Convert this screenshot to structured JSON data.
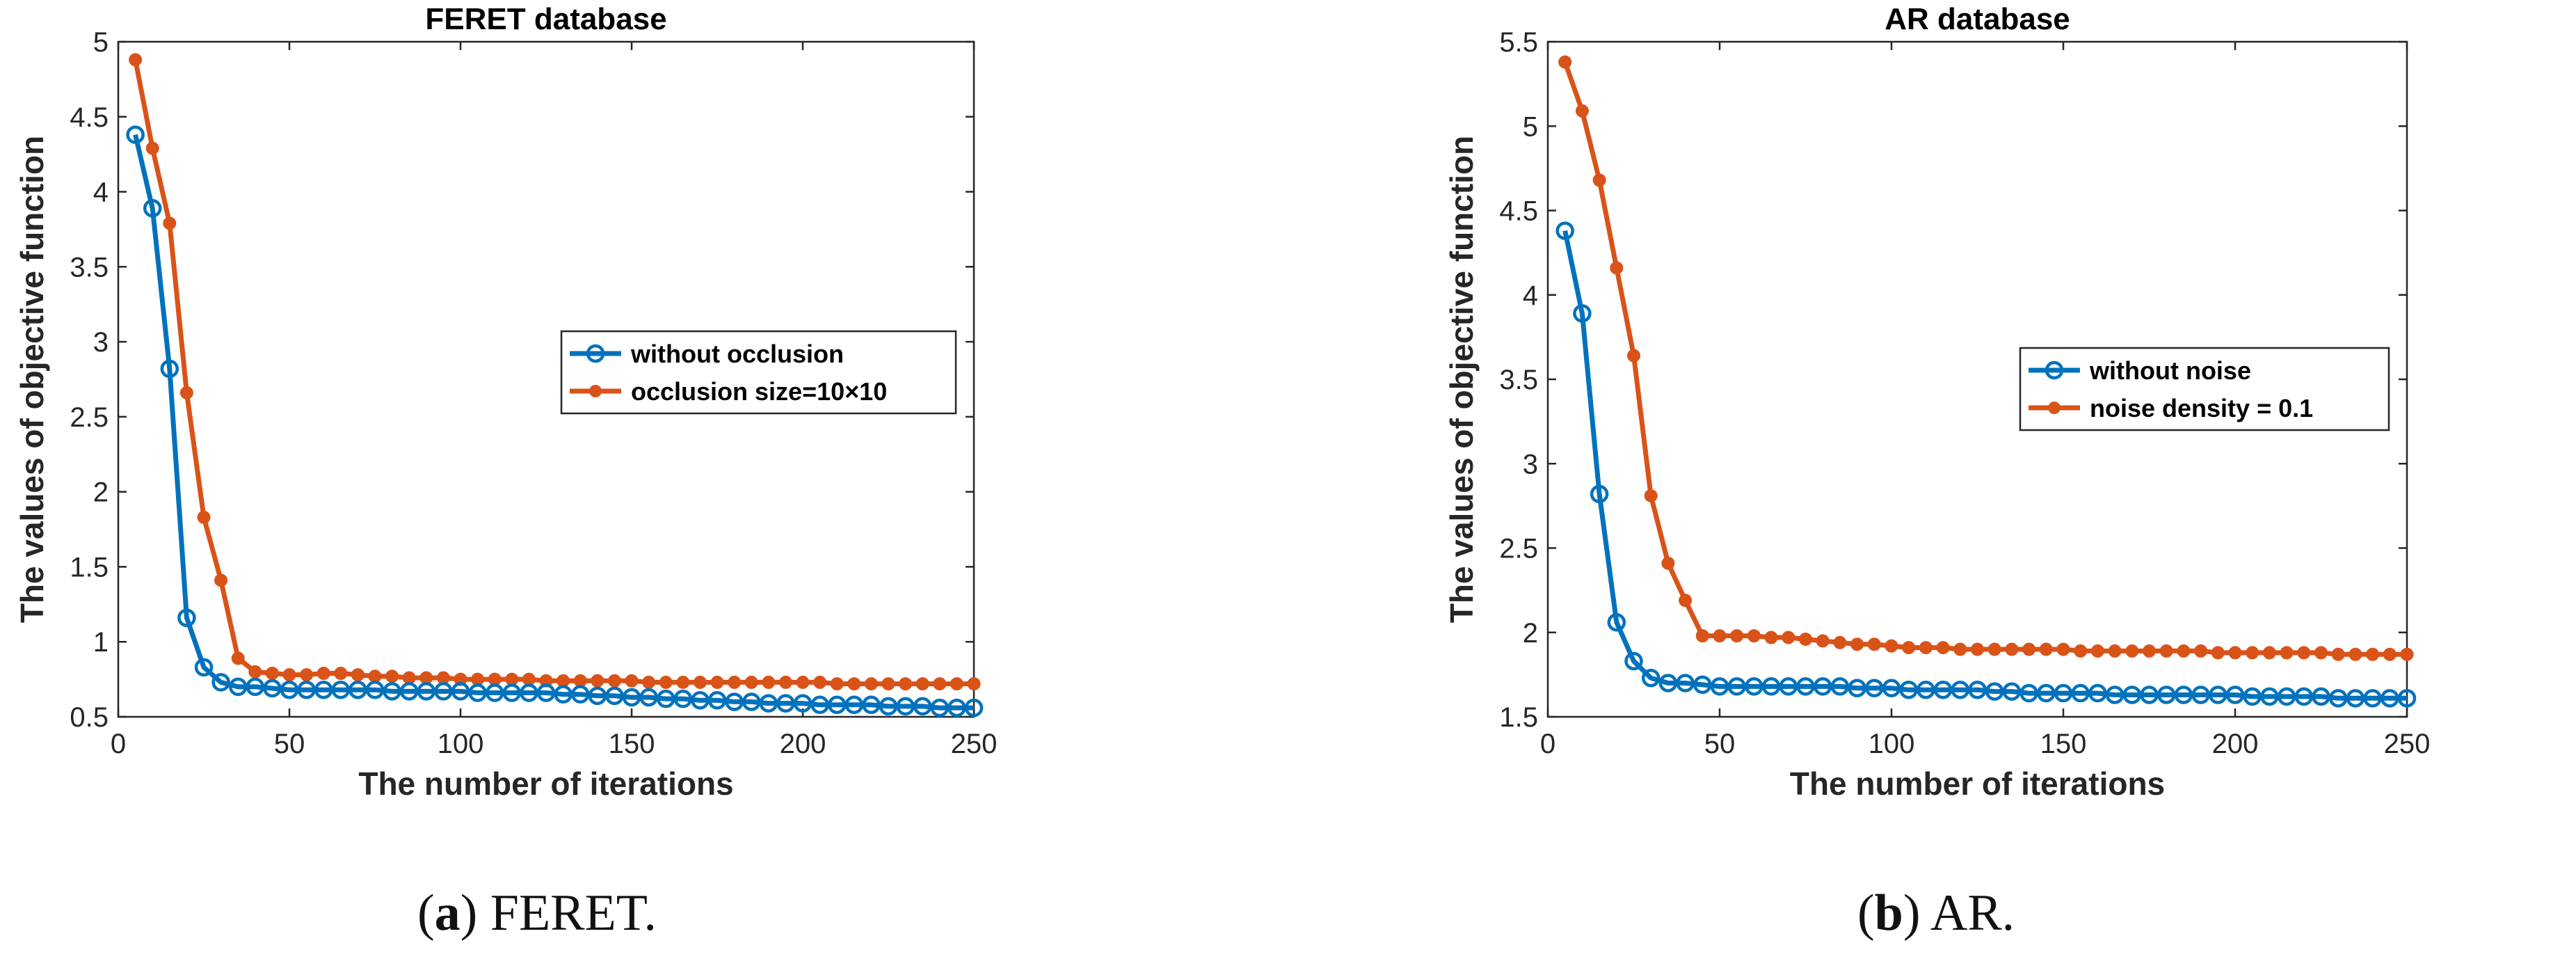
{
  "chart_data": [
    {
      "type": "line",
      "title": "FERET database",
      "xlabel": "The number of iterations",
      "ylabel": "The values of objective function",
      "xlim": [
        0,
        250
      ],
      "ylim": [
        0.5,
        5
      ],
      "xticks": [
        0,
        50,
        100,
        150,
        200,
        250
      ],
      "yticks": [
        0.5,
        1,
        1.5,
        2,
        2.5,
        3,
        3.5,
        4,
        4.5,
        5
      ],
      "ytick_labels": [
        "0.5",
        "1",
        "1.5",
        "2",
        "2.5",
        "3",
        "3.5",
        "4",
        "4.5",
        "5"
      ],
      "legend_position": "center-right",
      "x": [
        5,
        10,
        15,
        20,
        25,
        30,
        35,
        40,
        45,
        50,
        55,
        60,
        65,
        70,
        75,
        80,
        85,
        90,
        95,
        100,
        105,
        110,
        115,
        120,
        125,
        130,
        135,
        140,
        145,
        150,
        155,
        160,
        165,
        170,
        175,
        180,
        185,
        190,
        195,
        200,
        205,
        210,
        215,
        220,
        225,
        230,
        235,
        240,
        245,
        250
      ],
      "series": [
        {
          "name": "without occlusion",
          "color": "#0072BD",
          "marker": "circle-open",
          "values": [
            4.38,
            3.89,
            2.82,
            1.16,
            0.83,
            0.73,
            0.7,
            0.7,
            0.69,
            0.68,
            0.68,
            0.68,
            0.68,
            0.68,
            0.68,
            0.67,
            0.67,
            0.67,
            0.67,
            0.67,
            0.66,
            0.66,
            0.66,
            0.66,
            0.66,
            0.65,
            0.65,
            0.64,
            0.64,
            0.63,
            0.63,
            0.62,
            0.62,
            0.61,
            0.61,
            0.6,
            0.6,
            0.59,
            0.59,
            0.59,
            0.58,
            0.58,
            0.58,
            0.58,
            0.57,
            0.57,
            0.57,
            0.56,
            0.56,
            0.56
          ]
        },
        {
          "name": "occlusion size=10×10",
          "color": "#D95319",
          "marker": "filled-dot",
          "values": [
            4.88,
            4.29,
            3.79,
            2.66,
            1.83,
            1.41,
            0.89,
            0.8,
            0.79,
            0.78,
            0.78,
            0.79,
            0.79,
            0.78,
            0.77,
            0.77,
            0.76,
            0.76,
            0.76,
            0.75,
            0.75,
            0.75,
            0.75,
            0.75,
            0.74,
            0.74,
            0.74,
            0.74,
            0.74,
            0.74,
            0.73,
            0.73,
            0.73,
            0.73,
            0.73,
            0.73,
            0.73,
            0.73,
            0.73,
            0.73,
            0.73,
            0.72,
            0.72,
            0.72,
            0.72,
            0.72,
            0.72,
            0.72,
            0.72,
            0.72
          ]
        }
      ]
    },
    {
      "type": "line",
      "title": "AR database",
      "xlabel": "The number of iterations",
      "ylabel": "The values of objective function",
      "xlim": [
        0,
        250
      ],
      "ylim": [
        1.5,
        5.5
      ],
      "xticks": [
        0,
        50,
        100,
        150,
        200,
        250
      ],
      "yticks": [
        1.5,
        2,
        2.5,
        3,
        3.5,
        4,
        4.5,
        5,
        5.5
      ],
      "ytick_labels": [
        "1.5",
        "2",
        "2.5",
        "3",
        "3.5",
        "4",
        "4.5",
        "5",
        "5.5"
      ],
      "legend_position": "center-right",
      "x": [
        5,
        10,
        15,
        20,
        25,
        30,
        35,
        40,
        45,
        50,
        55,
        60,
        65,
        70,
        75,
        80,
        85,
        90,
        95,
        100,
        105,
        110,
        115,
        120,
        125,
        130,
        135,
        140,
        145,
        150,
        155,
        160,
        165,
        170,
        175,
        180,
        185,
        190,
        195,
        200,
        205,
        210,
        215,
        220,
        225,
        230,
        235,
        240,
        245,
        250
      ],
      "series": [
        {
          "name": "without noise",
          "color": "#0072BD",
          "marker": "circle-open",
          "values": [
            4.38,
            3.89,
            2.82,
            2.06,
            1.83,
            1.73,
            1.7,
            1.7,
            1.69,
            1.68,
            1.68,
            1.68,
            1.68,
            1.68,
            1.68,
            1.68,
            1.68,
            1.67,
            1.67,
            1.67,
            1.66,
            1.66,
            1.66,
            1.66,
            1.66,
            1.65,
            1.65,
            1.64,
            1.64,
            1.64,
            1.64,
            1.64,
            1.63,
            1.63,
            1.63,
            1.63,
            1.63,
            1.63,
            1.63,
            1.63,
            1.62,
            1.62,
            1.62,
            1.62,
            1.62,
            1.61,
            1.61,
            1.61,
            1.61,
            1.61
          ]
        },
        {
          "name": "noise density = 0.1",
          "color": "#D95319",
          "marker": "filled-dot",
          "values": [
            5.38,
            5.09,
            4.68,
            4.16,
            3.64,
            2.81,
            2.41,
            2.19,
            1.98,
            1.98,
            1.98,
            1.98,
            1.97,
            1.97,
            1.96,
            1.95,
            1.94,
            1.93,
            1.93,
            1.92,
            1.91,
            1.91,
            1.91,
            1.9,
            1.9,
            1.9,
            1.9,
            1.9,
            1.9,
            1.9,
            1.89,
            1.89,
            1.89,
            1.89,
            1.89,
            1.89,
            1.89,
            1.89,
            1.88,
            1.88,
            1.88,
            1.88,
            1.88,
            1.88,
            1.88,
            1.87,
            1.87,
            1.87,
            1.87,
            1.87
          ]
        }
      ]
    }
  ],
  "captions": [
    {
      "letter": "a",
      "rest": ") FERET."
    },
    {
      "letter": "b",
      "rest": ") AR."
    }
  ]
}
